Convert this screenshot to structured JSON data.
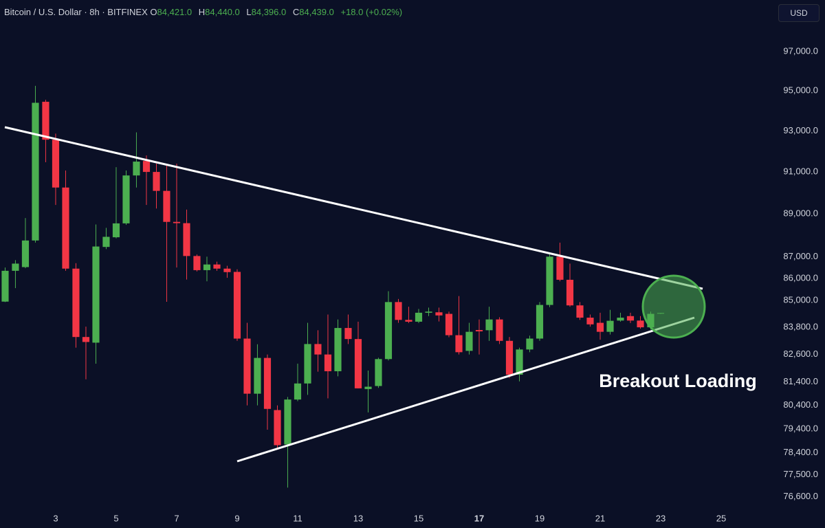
{
  "chart_data": {
    "type": "candlestick",
    "header": {
      "symbol": "Bitcoin / U.S. Dollar · 8h · BITFINEX",
      "open_label": "O",
      "open": "84,421.0",
      "high_label": "H",
      "high": "84,440.0",
      "low_label": "L",
      "low": "84,396.0",
      "close_label": "C",
      "close": "84,439.0",
      "change": "+18.0 (+0.02%)"
    },
    "currency": "USD",
    "annotation": "Breakout Loading",
    "x": [
      1.33,
      1.67,
      2,
      2.33,
      2.67,
      3,
      3.33,
      3.67,
      4,
      4.33,
      4.67,
      5,
      5.33,
      5.67,
      6,
      6.33,
      6.67,
      7,
      7.33,
      7.67,
      8,
      8.33,
      8.67,
      9,
      9.33,
      9.67,
      10,
      10.33,
      10.67,
      11,
      11.33,
      11.67,
      12,
      12.33,
      12.67,
      13,
      13.33,
      13.67,
      14,
      14.33,
      14.67,
      15,
      15.33,
      15.67,
      16,
      16.33,
      16.67,
      17,
      17.33,
      17.67,
      18,
      18.33,
      18.67,
      19,
      19.33,
      19.67,
      20,
      20.33,
      20.67,
      21,
      21.33,
      21.67,
      22,
      22.33,
      22.67,
      23
    ],
    "open": [
      84950,
      86350,
      86520,
      87750,
      94450,
      92570,
      90250,
      86450,
      83370,
      83120,
      87450,
      87900,
      88550,
      90830,
      91530,
      91000,
      90090,
      88620,
      88560,
      87030,
      86380,
      86640,
      86450,
      86300,
      83300,
      80900,
      82450,
      80200,
      78750,
      80650,
      81340,
      83060,
      82600,
      81870,
      83770,
      83280,
      81100,
      81230,
      82400,
      84930,
      84130,
      84050,
      84450,
      84470,
      84400,
      83450,
      82760,
      83680,
      83670,
      84150,
      83200,
      81720,
      82820,
      83300,
      84800,
      87000,
      85940,
      84780,
      84230,
      84000,
      83600,
      84100,
      84300,
      84100,
      83800,
      84421
    ],
    "high": [
      86500,
      86840,
      88800,
      95250,
      94550,
      92870,
      91070,
      86700,
      83830,
      88500,
      88340,
      91230,
      91070,
      92930,
      91800,
      91400,
      91400,
      91400,
      89200,
      87100,
      87000,
      86770,
      86580,
      86420,
      84000,
      83050,
      82600,
      80400,
      80760,
      82200,
      84000,
      83670,
      84370,
      84150,
      84370,
      84050,
      81900,
      82460,
      85420,
      85070,
      84720,
      84620,
      84680,
      84680,
      84500,
      85200,
      84000,
      84150,
      84720,
      84250,
      83370,
      82900,
      83430,
      84930,
      87170,
      87650,
      86680,
      84930,
      84370,
      84450,
      84580,
      84450,
      84450,
      84300,
      84500,
      84440
    ],
    "low": [
      84930,
      85560,
      86470,
      87650,
      91470,
      89420,
      86350,
      82900,
      81520,
      82200,
      87350,
      87850,
      88480,
      90250,
      89420,
      89250,
      84940,
      86500,
      85950,
      86320,
      85870,
      86350,
      86030,
      83200,
      80400,
      80400,
      79370,
      78570,
      76970,
      80580,
      80850,
      81850,
      80700,
      81650,
      83060,
      81130,
      80100,
      81150,
      82340,
      84000,
      83990,
      83990,
      84300,
      84060,
      83360,
      82600,
      82600,
      82600,
      83200,
      83060,
      81580,
      81430,
      82700,
      83200,
      84700,
      85870,
      84720,
      84130,
      83830,
      83250,
      83480,
      84050,
      83990,
      83740,
      83700,
      84396
    ],
    "close": [
      86350,
      86680,
      87750,
      94400,
      92570,
      90250,
      86450,
      83370,
      83150,
      87470,
      87920,
      88550,
      90830,
      91500,
      91000,
      90090,
      88620,
      88560,
      87030,
      86380,
      86640,
      86450,
      86290,
      83300,
      80900,
      82450,
      80250,
      78720,
      80650,
      81340,
      83060,
      82600,
      81870,
      83770,
      83280,
      81130,
      81200,
      82400,
      84930,
      84130,
      84050,
      84450,
      84500,
      84330,
      83450,
      82700,
      83600,
      83620,
      84150,
      83200,
      81720,
      82820,
      83300,
      84800,
      87000,
      85940,
      84780,
      84230,
      83930,
      83600,
      84090,
      84230,
      84100,
      83800,
      84400,
      84439
    ],
    "xlim": [
      1.16,
      26.5
    ],
    "xticks": [
      3,
      5,
      7,
      9,
      11,
      13,
      15,
      17,
      19,
      21,
      23,
      25
    ],
    "bold_xticks": [
      17
    ],
    "ylim": [
      76110,
      99690
    ],
    "log_y": true,
    "yticks": [
      {
        "value": 97000,
        "label": "97,000.0"
      },
      {
        "value": 95000,
        "label": "95,000.0"
      },
      {
        "value": 93000,
        "label": "93,000.0"
      },
      {
        "value": 91000,
        "label": "91,000.0"
      },
      {
        "value": 89000,
        "label": "89,000.0"
      },
      {
        "value": 87000,
        "label": "87,000.0"
      },
      {
        "value": 86000,
        "label": "86,000.0"
      },
      {
        "value": 85000,
        "label": "85,000.0"
      },
      {
        "value": 83800,
        "label": "83,800.0"
      },
      {
        "value": 82600,
        "label": "82,600.0"
      },
      {
        "value": 81400,
        "label": "81,400.0"
      },
      {
        "value": 80400,
        "label": "80,400.0"
      },
      {
        "value": 79400,
        "label": "79,400.0"
      },
      {
        "value": 78400,
        "label": "78,400.0"
      },
      {
        "value": 77500,
        "label": "77,500.0"
      },
      {
        "value": 76600,
        "label": "76,600.0"
      }
    ],
    "up_color": "#4caf50",
    "down_color": "#f23645"
  }
}
